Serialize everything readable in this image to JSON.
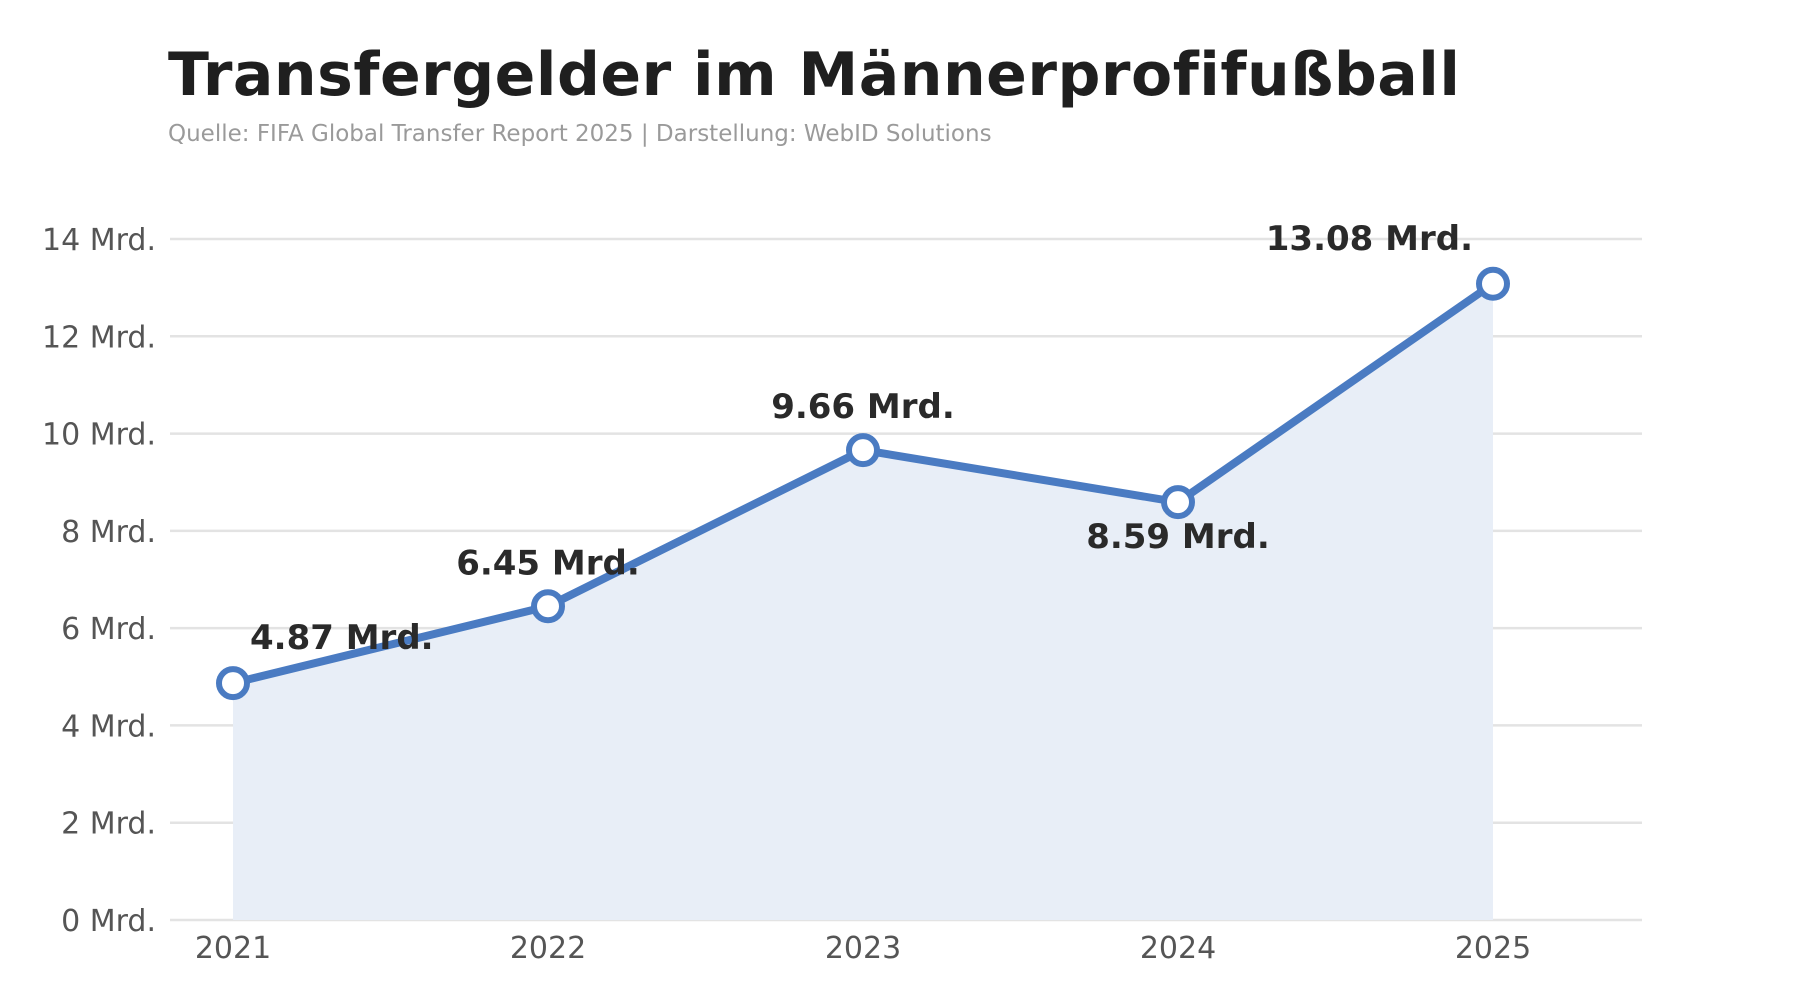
{
  "title": "Transfergelder im Männerprofifußball",
  "subtitle": "Quelle: FIFA Global Transfer Report 2025 | Darstellung: WebID Solutions",
  "colors": {
    "line": "#4a7bc2",
    "area": "#e8eef7",
    "grid": "#e3e3e3",
    "marker_fill": "#ffffff"
  },
  "chart_data": {
    "type": "area",
    "x": [
      "2021",
      "2022",
      "2023",
      "2024",
      "2025"
    ],
    "values": [
      4.87,
      6.45,
      9.66,
      8.59,
      13.08
    ],
    "data_labels": [
      "4.87 Mrd.",
      "6.45 Mrd.",
      "9.66 Mrd.",
      "8.59 Mrd.",
      "13.08 Mrd."
    ],
    "yticks": [
      0,
      2,
      4,
      6,
      8,
      10,
      12,
      14
    ],
    "ytick_labels": [
      "0 Mrd.",
      "2 Mrd.",
      "4 Mrd.",
      "6 Mrd.",
      "8 Mrd.",
      "10 Mrd.",
      "12 Mrd.",
      "14 Mrd."
    ],
    "ylim": [
      0,
      14
    ],
    "grid": true,
    "legend": "none",
    "title": "Transfergelder im Männerprofifußball",
    "xlabel": "",
    "ylabel": ""
  }
}
